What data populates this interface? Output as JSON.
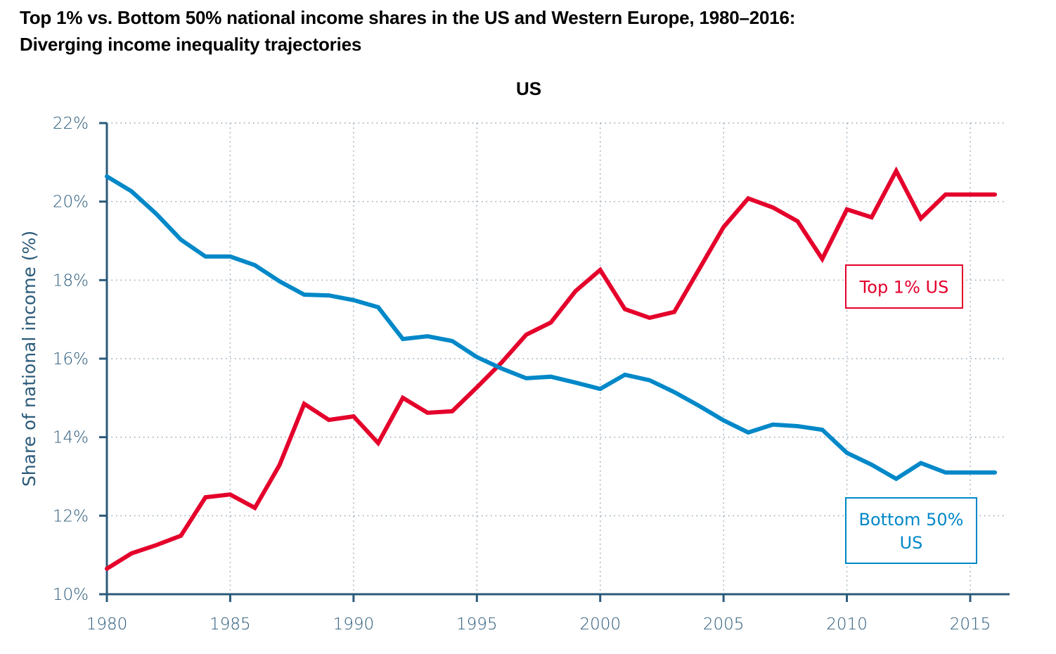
{
  "title_line1": "Top 1% vs. Bottom 50% national income shares in the US and Western Europe, 1980–2016:",
  "title_line2": "Diverging income inequality trajectories",
  "colors": {
    "top1": "#e4002b",
    "bottom50": "#0088c8",
    "axis": "#2b5a7a",
    "grid": "#8fa3b3"
  },
  "chart_data": {
    "type": "line",
    "title": "US",
    "xlabel": "",
    "ylabel": "Share of national income (%)",
    "xlim": [
      1980,
      2016
    ],
    "ylim": [
      10,
      22
    ],
    "x_ticks": [
      1980,
      1985,
      1990,
      1995,
      2000,
      2005,
      2010,
      2015
    ],
    "x_tick_labels": [
      "1980",
      "1985",
      "1990",
      "1995",
      "2000",
      "2005",
      "2010",
      "2015"
    ],
    "y_ticks": [
      10,
      12,
      14,
      16,
      18,
      20,
      22
    ],
    "y_tick_labels": [
      "10%",
      "12%",
      "14%",
      "16%",
      "18%",
      "20%",
      "22%"
    ],
    "grid": true,
    "x": [
      1980,
      1981,
      1982,
      1983,
      1984,
      1985,
      1986,
      1987,
      1988,
      1989,
      1990,
      1991,
      1992,
      1993,
      1994,
      1995,
      1996,
      1997,
      1998,
      1999,
      2000,
      2001,
      2002,
      2003,
      2004,
      2005,
      2006,
      2007,
      2008,
      2009,
      2010,
      2011,
      2012,
      2013,
      2014,
      2015,
      2016
    ],
    "series": [
      {
        "name": "Top 1% US",
        "color_key": "top1",
        "label_lines": [
          "Top 1% US"
        ],
        "values": [
          10.65,
          11.04,
          11.25,
          11.49,
          12.47,
          12.54,
          12.2,
          13.29,
          14.85,
          14.44,
          14.53,
          13.85,
          15.0,
          14.62,
          14.66,
          15.27,
          15.9,
          16.61,
          16.92,
          17.72,
          18.26,
          17.26,
          17.04,
          17.19,
          18.27,
          19.35,
          20.08,
          19.85,
          19.5,
          18.54,
          19.8,
          19.6,
          20.78,
          19.57,
          20.18,
          20.18,
          20.18
        ]
      },
      {
        "name": "Bottom 50% US",
        "color_key": "bottom50",
        "label_lines": [
          "Bottom 50%",
          "US"
        ],
        "values": [
          20.64,
          20.26,
          19.69,
          19.03,
          18.6,
          18.6,
          18.38,
          17.97,
          17.63,
          17.61,
          17.49,
          17.31,
          16.5,
          16.57,
          16.45,
          16.04,
          15.75,
          15.5,
          15.54,
          15.39,
          15.23,
          15.59,
          15.45,
          15.15,
          14.8,
          14.43,
          14.12,
          14.32,
          14.28,
          14.19,
          13.6,
          13.3,
          12.94,
          13.34,
          13.1,
          13.1,
          13.1
        ]
      }
    ],
    "legend": "inline-boxes-right"
  }
}
